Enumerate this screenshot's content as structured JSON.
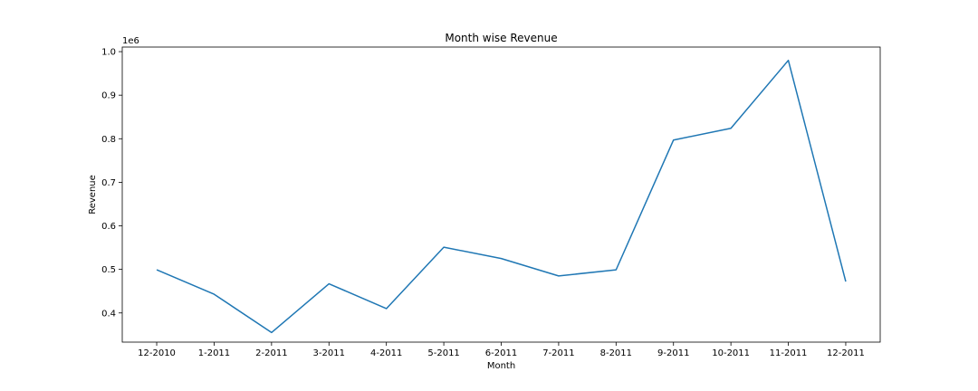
{
  "chart_data": {
    "type": "line",
    "title": "Month wise Revenue",
    "xlabel": "Month",
    "ylabel": "Revenue",
    "y_offset_label": "1e6",
    "categories": [
      "12-2010",
      "1-2011",
      "2-2011",
      "3-2011",
      "4-2011",
      "5-2011",
      "6-2011",
      "7-2011",
      "8-2011",
      "9-2011",
      "10-2011",
      "11-2011",
      "12-2011"
    ],
    "series": [
      {
        "values": [
          499000,
          443000,
          355000,
          467000,
          410000,
          551000,
          525000,
          485000,
          499000,
          797000,
          824000,
          980000,
          472000
        ],
        "color": "#1f77b4"
      }
    ],
    "y_ticks": [
      0.4,
      0.5,
      0.6,
      0.7,
      0.8,
      0.9,
      1.0
    ],
    "y_tick_labels": [
      "0.4",
      "0.5",
      "0.6",
      "0.7",
      "0.8",
      "0.9",
      "1.0"
    ],
    "y_tick_scale": 1000000,
    "ylim": [
      0.333,
      1.0105
    ],
    "grid": false,
    "legend": "none"
  }
}
